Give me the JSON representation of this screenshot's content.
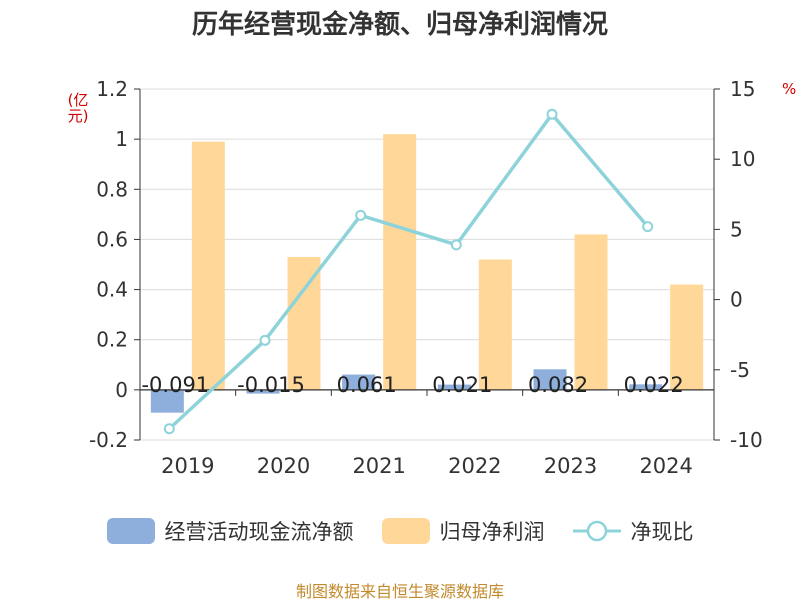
{
  "chart_data": {
    "type": "bar",
    "title": "历年经营现金净额、归母净利润情况",
    "categories": [
      "2019",
      "2020",
      "2021",
      "2022",
      "2023",
      "2024"
    ],
    "series": [
      {
        "name": "经营活动现金流净额",
        "type": "bar",
        "axis": "left",
        "color": "#8eaedc",
        "values": [
          -0.091,
          -0.015,
          0.061,
          0.021,
          0.082,
          0.022
        ],
        "labels": [
          "-0.091",
          "-0.015",
          "0.061",
          "0.021",
          "0.082",
          "0.022"
        ]
      },
      {
        "name": "归母净利润",
        "type": "bar",
        "axis": "left",
        "color": "#ffd899",
        "values": [
          0.99,
          0.53,
          1.02,
          0.52,
          0.62,
          0.42
        ]
      },
      {
        "name": "净现比",
        "type": "line",
        "axis": "right",
        "color": "#8dd3d9",
        "values": [
          -9.2,
          -2.9,
          6.0,
          3.9,
          13.2,
          5.2
        ]
      }
    ],
    "left_axis": {
      "unit": "(亿元)",
      "ylim": [
        -0.2,
        1.2
      ],
      "ticks": [
        -0.2,
        0,
        0.2,
        0.4,
        0.6,
        0.8,
        1,
        1.2
      ],
      "tick_labels": [
        "-0.2",
        "0",
        "0.2",
        "0.4",
        "0.6",
        "0.8",
        "1",
        "1.2"
      ]
    },
    "right_axis": {
      "unit": "%",
      "ylim": [
        -10,
        15
      ],
      "ticks": [
        -10,
        -5,
        0,
        5,
        10,
        15
      ],
      "tick_labels": [
        "-10",
        "-5",
        "0",
        "5",
        "10",
        "15"
      ]
    },
    "grid": true,
    "legend_position": "bottom"
  },
  "legend": {
    "item1": "经营活动现金流净额",
    "item2": "归母净利润",
    "item3": "净现比"
  },
  "footer": "制图数据来自恒生聚源数据库",
  "colors": {
    "cashflow": "#8eaedc",
    "profit": "#ffd899",
    "ratio": "#8dd3d9",
    "unit": "#d00000",
    "footer": "#c28a2c"
  }
}
